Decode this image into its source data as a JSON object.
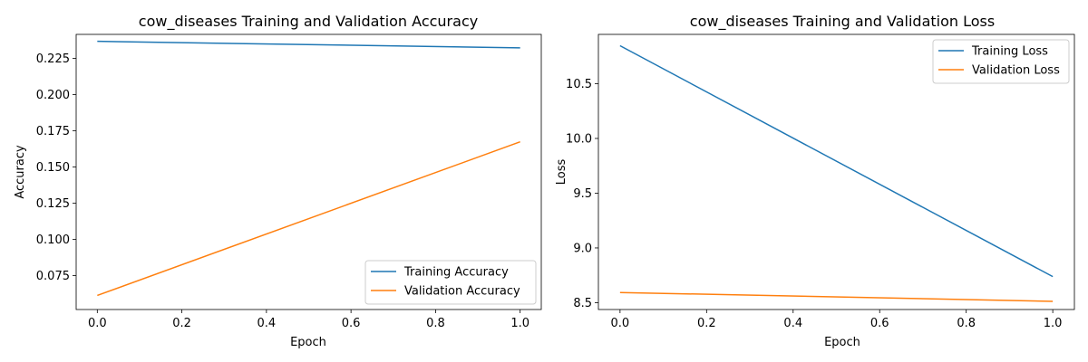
{
  "chart_data": [
    {
      "type": "line",
      "title": "cow_diseases Training and Validation Accuracy",
      "xlabel": "Epoch",
      "ylabel": "Accuracy",
      "x": [
        0.0,
        1.0
      ],
      "xlim": [
        -0.05,
        1.05
      ],
      "ylim": [
        0.0515,
        0.2415
      ],
      "xticks": [
        "0.0",
        "0.2",
        "0.4",
        "0.6",
        "0.8",
        "1.0"
      ],
      "yticks": [
        "0.075",
        "0.100",
        "0.125",
        "0.150",
        "0.175",
        "0.200",
        "0.225"
      ],
      "series": [
        {
          "name": "Training Accuracy",
          "values": [
            0.2367,
            0.2322
          ],
          "color": "#1f77b4"
        },
        {
          "name": "Validation Accuracy",
          "values": [
            0.0612,
            0.1673
          ],
          "color": "#ff7f0e"
        }
      ],
      "legend_position": "lower right",
      "grid": false
    },
    {
      "type": "line",
      "title": "cow_diseases Training and Validation Loss",
      "xlabel": "Epoch",
      "ylabel": "Loss",
      "x": [
        0.0,
        1.0
      ],
      "xlim": [
        -0.05,
        1.05
      ],
      "ylim": [
        8.4375,
        10.9505
      ],
      "xticks": [
        "0.0",
        "0.2",
        "0.4",
        "0.6",
        "0.8",
        "1.0"
      ],
      "yticks": [
        "8.5",
        "9.0",
        "9.5",
        "10.0",
        "10.5"
      ],
      "series": [
        {
          "name": "Training Loss",
          "values": [
            10.847,
            8.738
          ],
          "color": "#1f77b4"
        },
        {
          "name": "Validation Loss",
          "values": [
            8.593,
            8.512
          ],
          "color": "#ff7f0e"
        }
      ],
      "legend_position": "upper right",
      "grid": false
    }
  ]
}
